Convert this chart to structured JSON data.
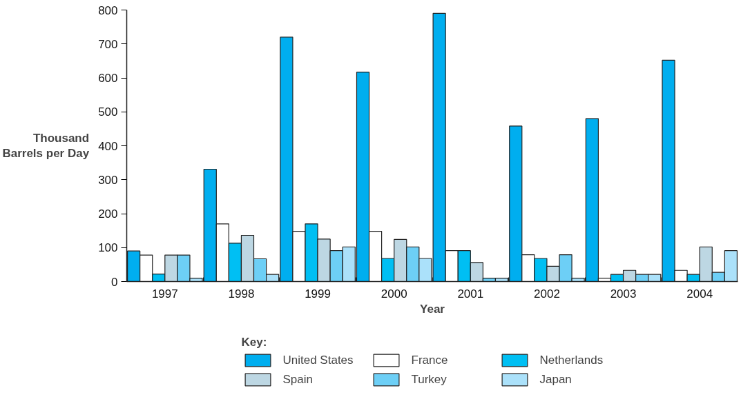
{
  "chart_data": {
    "type": "bar",
    "xlabel": "Year",
    "ylabel": "Thousand\nBarrels per Day",
    "legend_title": "Key:",
    "categories": [
      "1997",
      "1998",
      "1999",
      "2000",
      "2001",
      "2002",
      "2003",
      "2004"
    ],
    "series": [
      {
        "name": "United States",
        "color": "#00aeef",
        "values": [
          90,
          331,
          720,
          617,
          790,
          458,
          480,
          652
        ]
      },
      {
        "name": "France",
        "color": "#ffffff",
        "values": [
          78,
          170,
          148,
          148,
          91,
          79,
          10,
          33
        ]
      },
      {
        "name": "Netherlands",
        "color": "#00bff3",
        "values": [
          22,
          113,
          170,
          68,
          91,
          68,
          21,
          21
        ]
      },
      {
        "name": "Spain",
        "color": "#bdd7e3",
        "values": [
          78,
          136,
          125,
          124,
          56,
          45,
          33,
          102
        ]
      },
      {
        "name": "Turkey",
        "color": "#6dcff6",
        "values": [
          78,
          67,
          91,
          102,
          10,
          79,
          21,
          27
        ]
      },
      {
        "name": "Japan",
        "color": "#abe1fa",
        "values": [
          10,
          21,
          102,
          68,
          10,
          10,
          21,
          91
        ]
      }
    ],
    "ylim": [
      0,
      800
    ],
    "yticks": [
      0,
      100,
      200,
      300,
      400,
      500,
      600,
      700,
      800
    ],
    "grid": false,
    "legend": "bottom"
  }
}
